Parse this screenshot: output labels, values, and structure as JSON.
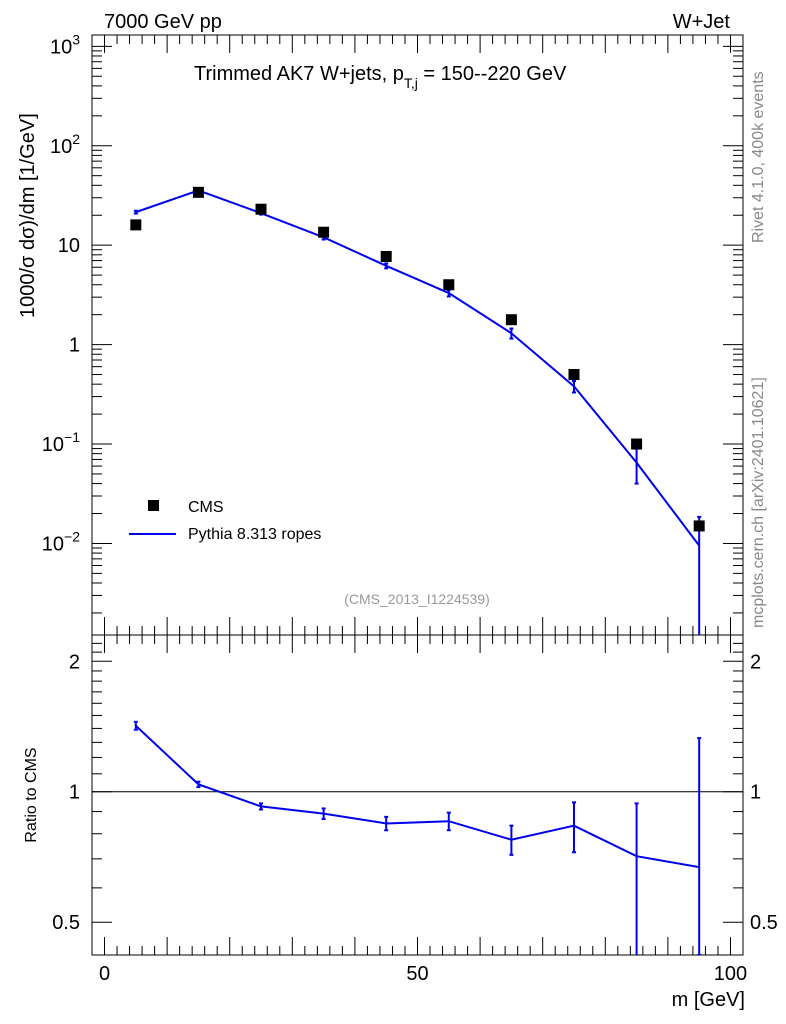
{
  "header": {
    "energy_label": "7000 GeV pp",
    "process_label": "W+Jet"
  },
  "side_labels": {
    "rivet": "Rivet 4.1.0,  400k events",
    "mcplots": "mcplots.cern.ch [arXiv:2401.10621]"
  },
  "analysis_id": "(CMS_2013_I1224539)",
  "colors": {
    "data": "#000000",
    "mc": "#0000ee",
    "frame": "#000000"
  },
  "chart_data": [
    {
      "type": "scatter",
      "title_main": "Trimmed AK7 W+jets, p",
      "title_sub": "T,j",
      "title_tail": " = 150--220 GeV",
      "xlabel": "m [GeV]",
      "ylabel_pre": "1000/",
      "ylabel_sigma": "σ",
      "ylabel_mid": "  d",
      "ylabel_post": ")/dm [1/GeV]",
      "yscale": "log",
      "xlim": [
        -2,
        102
      ],
      "ylim": [
        0.0012,
        1300
      ],
      "y_ticks": [
        {
          "value": 1000,
          "base": "10",
          "exp": "3"
        },
        {
          "value": 100,
          "base": "10",
          "exp": "2"
        },
        {
          "value": 10,
          "base": "10",
          "exp": ""
        },
        {
          "value": 1,
          "base": "1",
          "exp": ""
        },
        {
          "value": 0.1,
          "base": "10",
          "exp": "−1"
        },
        {
          "value": 0.01,
          "base": "10",
          "exp": "−2"
        }
      ],
      "legend": {
        "position": "bottom-left",
        "data_label": "CMS",
        "mc_label": "Pythia 8.313 ropes"
      },
      "series": [
        {
          "name": "CMS",
          "x": [
            5,
            15,
            25,
            35,
            45,
            55,
            65,
            75,
            85,
            95
          ],
          "y": [
            16,
            34,
            23,
            13.5,
            7.7,
            4.0,
            1.78,
            0.5,
            0.1,
            0.015
          ]
        },
        {
          "name": "Pythia 8.313 ropes",
          "x": [
            5,
            15,
            25,
            35,
            45,
            55,
            65,
            75,
            85,
            95
          ],
          "y": [
            21.5,
            35.5,
            21,
            12,
            6.2,
            3.3,
            1.3,
            0.38,
            0.065,
            0.0095
          ],
          "err_low": [
            0.7,
            0.8,
            0.7,
            0.6,
            0.35,
            0.25,
            0.15,
            0.05,
            0.025,
            0.0095
          ],
          "err_high": [
            0.7,
            0.8,
            0.7,
            0.6,
            0.35,
            0.25,
            0.15,
            0.05,
            0.025,
            0.009
          ]
        }
      ]
    },
    {
      "type": "line",
      "ylabel": "Ratio to CMS",
      "xlim": [
        -2,
        102
      ],
      "ylim": [
        0.42,
        2.3
      ],
      "yscale": "log",
      "reference": 1,
      "y_tick_labels": [
        {
          "value": 2,
          "label": "2"
        },
        {
          "value": 1,
          "label": "1"
        },
        {
          "value": 0.5,
          "label": "0.5"
        }
      ],
      "x_tick_labels": [
        {
          "value": 0,
          "label": "0"
        },
        {
          "value": 50,
          "label": "50"
        },
        {
          "value": 100,
          "label": "100"
        }
      ],
      "series": [
        {
          "name": "Pythia 8.313 ropes / CMS",
          "x": [
            5,
            15,
            25,
            35,
            45,
            55,
            65,
            75,
            85,
            95
          ],
          "y": [
            1.42,
            1.04,
            0.925,
            0.89,
            0.845,
            0.855,
            0.775,
            0.835,
            0.71,
            0.67
          ],
          "err_low": [
            0.03,
            0.015,
            0.015,
            0.025,
            0.03,
            0.04,
            0.06,
            0.11,
            0.33,
            0.25
          ],
          "err_high": [
            0.03,
            0.015,
            0.015,
            0.025,
            0.03,
            0.04,
            0.06,
            0.11,
            0.23,
            0.66
          ]
        }
      ]
    }
  ]
}
